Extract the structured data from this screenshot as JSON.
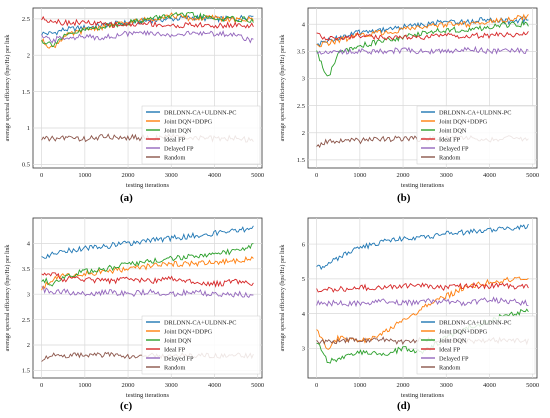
{
  "chart_data": [
    {
      "type": "line",
      "caption": "(a)",
      "xlabel": "testing iterations",
      "ylabel": "average spectral efficiency (bps/Hz) per link",
      "xlim": [
        -200,
        5100
      ],
      "ylim": [
        0.45,
        2.65
      ],
      "xticks": [
        0,
        1000,
        2000,
        3000,
        4000,
        5000
      ],
      "yticks": [
        0.5,
        1.0,
        1.5,
        2.0,
        2.5
      ],
      "grid": true,
      "legend_position": "bottom-right",
      "x": [
        0,
        250,
        500,
        1000,
        1500,
        2000,
        2500,
        3000,
        3500,
        4000,
        4500,
        4900
      ],
      "series": [
        {
          "name": "DRLDNN-CA+ULDNN-PC",
          "color": "#1f77b4",
          "values": [
            2.3,
            2.3,
            2.35,
            2.38,
            2.42,
            2.45,
            2.48,
            2.5,
            2.52,
            2.5,
            2.5,
            2.55
          ]
        },
        {
          "name": "Joint DQN+DDPG",
          "color": "#ff7f0e",
          "values": [
            2.2,
            2.1,
            2.25,
            2.35,
            2.4,
            2.45,
            2.5,
            2.55,
            2.5,
            2.52,
            2.48,
            2.5
          ]
        },
        {
          "name": "Joint DQN",
          "color": "#2ca02c",
          "values": [
            2.2,
            2.15,
            2.25,
            2.35,
            2.4,
            2.45,
            2.5,
            2.55,
            2.55,
            2.5,
            2.5,
            2.48
          ]
        },
        {
          "name": "Ideal FP",
          "color": "#d62728",
          "values": [
            2.5,
            2.48,
            2.45,
            2.45,
            2.42,
            2.42,
            2.44,
            2.4,
            2.42,
            2.4,
            2.42,
            2.4
          ]
        },
        {
          "name": "Delayed FP",
          "color": "#9467bd",
          "values": [
            2.25,
            2.2,
            2.25,
            2.25,
            2.25,
            2.3,
            2.3,
            2.28,
            2.3,
            2.3,
            2.28,
            2.2
          ]
        },
        {
          "name": "Random",
          "color": "#8c564b",
          "values": [
            0.85,
            0.85,
            0.87,
            0.85,
            0.88,
            0.87,
            0.86,
            0.88,
            0.87,
            0.85,
            0.86,
            0.83
          ]
        }
      ]
    },
    {
      "type": "line",
      "caption": "(b)",
      "xlabel": "testing iterations",
      "ylabel": "average spectral efficiency (bps/Hz) per link",
      "xlim": [
        -200,
        5100
      ],
      "ylim": [
        1.35,
        4.3
      ],
      "xticks": [
        0,
        1000,
        2000,
        3000,
        4000,
        5000
      ],
      "yticks": [
        1.5,
        2.0,
        2.5,
        3.0,
        3.5,
        4.0
      ],
      "grid": true,
      "legend_position": "bottom-right",
      "x": [
        0,
        250,
        500,
        1000,
        1500,
        2000,
        2500,
        3000,
        3500,
        4000,
        4500,
        4900
      ],
      "series": [
        {
          "name": "DRLDNN-CA+ULDNN-PC",
          "color": "#1f77b4",
          "values": [
            3.6,
            3.7,
            3.75,
            3.85,
            3.9,
            3.95,
            4.0,
            4.05,
            4.05,
            4.1,
            4.05,
            4.1
          ]
        },
        {
          "name": "Joint DQN+DDPG",
          "color": "#ff7f0e",
          "values": [
            3.6,
            3.65,
            3.7,
            3.8,
            3.85,
            3.9,
            3.95,
            4.0,
            4.0,
            4.05,
            4.1,
            4.15
          ]
        },
        {
          "name": "Joint DQN",
          "color": "#2ca02c",
          "values": [
            3.5,
            3.0,
            3.45,
            3.6,
            3.7,
            3.75,
            3.85,
            3.9,
            3.9,
            3.95,
            4.0,
            4.0
          ]
        },
        {
          "name": "Ideal FP",
          "color": "#d62728",
          "values": [
            3.8,
            3.75,
            3.75,
            3.8,
            3.75,
            3.75,
            3.75,
            3.8,
            3.78,
            3.8,
            3.8,
            3.82
          ]
        },
        {
          "name": "Delayed FP",
          "color": "#9467bd",
          "values": [
            3.5,
            3.5,
            3.5,
            3.5,
            3.5,
            3.52,
            3.5,
            3.5,
            3.55,
            3.5,
            3.52,
            3.5
          ]
        },
        {
          "name": "Random",
          "color": "#8c564b",
          "values": [
            1.75,
            1.85,
            1.85,
            1.85,
            1.88,
            1.9,
            1.88,
            1.9,
            1.9,
            1.88,
            1.9,
            1.87
          ]
        }
      ]
    },
    {
      "type": "line",
      "caption": "(c)",
      "xlabel": "testing iterations",
      "ylabel": "average spectral efficiency (bps/Hz) per link",
      "xlim": [
        -200,
        5100
      ],
      "ylim": [
        1.35,
        4.5
      ],
      "xticks": [
        0,
        1000,
        2000,
        3000,
        4000,
        5000
      ],
      "yticks": [
        1.5,
        2.0,
        2.5,
        3.0,
        3.5,
        4.0
      ],
      "grid": true,
      "legend_position": "bottom-right",
      "x": [
        0,
        250,
        500,
        1000,
        1500,
        2000,
        2500,
        3000,
        3500,
        4000,
        4500,
        4900
      ],
      "series": [
        {
          "name": "DRLDNN-CA+ULDNN-PC",
          "color": "#1f77b4",
          "values": [
            3.7,
            3.8,
            3.85,
            3.9,
            3.95,
            4.0,
            4.05,
            4.1,
            4.15,
            4.2,
            4.25,
            4.3
          ]
        },
        {
          "name": "Joint DQN+DDPG",
          "color": "#ff7f0e",
          "values": [
            3.1,
            3.3,
            3.35,
            3.4,
            3.45,
            3.5,
            3.55,
            3.6,
            3.6,
            3.62,
            3.65,
            3.7
          ]
        },
        {
          "name": "Joint DQN",
          "color": "#2ca02c",
          "values": [
            3.3,
            3.2,
            3.35,
            3.45,
            3.5,
            3.6,
            3.65,
            3.7,
            3.75,
            3.8,
            3.85,
            3.95
          ]
        },
        {
          "name": "Ideal FP",
          "color": "#d62728",
          "values": [
            3.4,
            3.4,
            3.3,
            3.3,
            3.25,
            3.3,
            3.25,
            3.3,
            3.25,
            3.2,
            3.25,
            3.2
          ]
        },
        {
          "name": "Delayed FP",
          "color": "#9467bd",
          "values": [
            3.1,
            3.05,
            3.05,
            3.0,
            3.05,
            3.0,
            3.05,
            3.0,
            3.05,
            3.0,
            3.0,
            2.98
          ]
        },
        {
          "name": "Random",
          "color": "#8c564b",
          "values": [
            1.7,
            1.78,
            1.8,
            1.8,
            1.8,
            1.78,
            1.8,
            1.78,
            1.8,
            1.78,
            1.8,
            1.78
          ]
        }
      ]
    },
    {
      "type": "line",
      "caption": "(d)",
      "xlabel": "testing iterations",
      "ylabel": "average spectral efficiency (bps/Hz) per link",
      "xlim": [
        -200,
        5100
      ],
      "ylim": [
        2.15,
        6.75
      ],
      "xticks": [
        0,
        1000,
        2000,
        3000,
        4000,
        5000
      ],
      "yticks": [
        3,
        4,
        5,
        6
      ],
      "grid": true,
      "legend_position": "bottom-right",
      "x": [
        0,
        250,
        500,
        1000,
        1500,
        2000,
        2500,
        3000,
        3500,
        4000,
        4500,
        4900
      ],
      "series": [
        {
          "name": "DRLDNN-CA+ULDNN-PC",
          "color": "#1f77b4",
          "values": [
            5.3,
            5.4,
            5.6,
            5.9,
            6.05,
            6.15,
            6.2,
            6.3,
            6.35,
            6.4,
            6.45,
            6.5
          ]
        },
        {
          "name": "Joint DQN+DDPG",
          "color": "#ff7f0e",
          "values": [
            3.5,
            3.0,
            3.3,
            3.2,
            3.4,
            3.8,
            4.2,
            4.5,
            4.8,
            4.9,
            5.0,
            5.05
          ]
        },
        {
          "name": "Joint DQN",
          "color": "#2ca02c",
          "values": [
            3.2,
            2.6,
            2.7,
            2.9,
            2.8,
            3.0,
            2.9,
            3.3,
            3.6,
            3.8,
            4.0,
            4.1
          ]
        },
        {
          "name": "Ideal FP",
          "color": "#d62728",
          "values": [
            4.7,
            4.7,
            4.7,
            4.75,
            4.75,
            4.8,
            4.8,
            4.75,
            4.8,
            4.8,
            4.8,
            4.75
          ]
        },
        {
          "name": "Delayed FP",
          "color": "#9467bd",
          "values": [
            4.3,
            4.3,
            4.3,
            4.3,
            4.35,
            4.3,
            4.35,
            4.35,
            4.3,
            4.4,
            4.35,
            4.3
          ]
        },
        {
          "name": "Random",
          "color": "#8c564b",
          "values": [
            3.2,
            3.2,
            3.2,
            3.25,
            3.25,
            3.2,
            3.25,
            3.25,
            3.2,
            3.25,
            3.22,
            3.2
          ]
        }
      ]
    }
  ]
}
